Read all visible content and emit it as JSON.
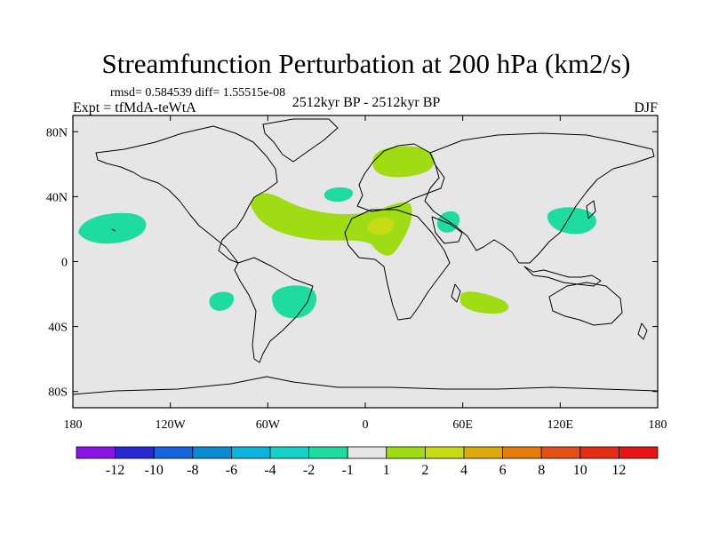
{
  "chart_data": {
    "type": "heatmap",
    "title": "Streamfunction Perturbation at 200 hPa (km2/s)",
    "stats": "rmsd= 0.584539 diff= 1.55515e-08",
    "left_label": "Expt = tfMdA-teWtA",
    "center_label": "2512kyr BP - 2512kyr BP",
    "right_label": "DJF",
    "x_ticks": [
      "180",
      "120W",
      "60W",
      "0",
      "60E",
      "120E",
      "180"
    ],
    "x_tick_values": [
      -180,
      -120,
      -60,
      0,
      60,
      120,
      180
    ],
    "y_ticks": [
      "80N",
      "40N",
      "0",
      "40S",
      "80S"
    ],
    "y_tick_values": [
      80,
      40,
      0,
      -40,
      -80
    ],
    "xlim": [
      -180,
      180
    ],
    "ylim": [
      -90,
      90
    ],
    "colorbar_labels": [
      "-12",
      "-10",
      "-8",
      "-6",
      "-4",
      "-2",
      "-1",
      "1",
      "2",
      "4",
      "6",
      "8",
      "10",
      "12"
    ],
    "colorbar_colors": [
      "#8c14e6",
      "#2828d2",
      "#1464dc",
      "#0a8cd2",
      "#0ab4dc",
      "#14d2c8",
      "#1edca0",
      "#e6e6e6",
      "#a0dc14",
      "#c8dc14",
      "#dcaa0a",
      "#e67c0a",
      "#e65014",
      "#e62d14",
      "#e61414"
    ],
    "background_value_color": "#e6e6e6",
    "regions": [
      {
        "name": "north-pacific-negative",
        "value_range": "-2 to -1",
        "color": "#1edca0",
        "lon": -165,
        "lat": 22
      },
      {
        "name": "north-atlantic-positive-band",
        "value_range": "1 to 2",
        "color": "#a0dc14",
        "lon": -20,
        "lat": 32
      },
      {
        "name": "north-africa-core",
        "value_range": "2 to 4",
        "color": "#c8dc14",
        "lon": 9,
        "lat": 24
      },
      {
        "name": "scandinavia-positive",
        "value_range": "1 to 2",
        "color": "#a0dc14",
        "lon": 23,
        "lat": 63
      },
      {
        "name": "east-atlantic-negative",
        "value_range": "-2 to -1",
        "color": "#1edca0",
        "lon": -17,
        "lat": 43
      },
      {
        "name": "arabia-negative",
        "value_range": "-2 to -1",
        "color": "#1edca0",
        "lon": 52,
        "lat": 25
      },
      {
        "name": "east-asia-negative",
        "value_range": "-2 to -1",
        "color": "#1edca0",
        "lon": 127,
        "lat": 31
      },
      {
        "name": "south-pacific-negative",
        "value_range": "-2 to -1",
        "color": "#1edca0",
        "lon": -96,
        "lat": -24
      },
      {
        "name": "south-atlantic-negative",
        "value_range": "-2 to -1",
        "color": "#1edca0",
        "lon": -40,
        "lat": -30
      },
      {
        "name": "south-indian-positive",
        "value_range": "1 to 2",
        "color": "#a0dc14",
        "lon": 67,
        "lat": -28
      }
    ]
  }
}
